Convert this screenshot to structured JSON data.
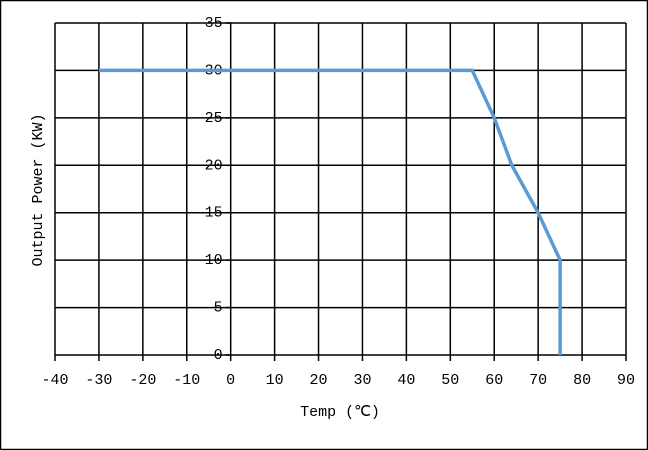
{
  "chart_data": {
    "type": "line",
    "x_label": "Temp (℃)",
    "y_label": "Output Power (KW)",
    "x": [
      -30,
      55,
      60,
      64,
      70,
      75,
      75
    ],
    "series": [
      {
        "color": "#5b9bd5",
        "values": [
          30,
          30,
          25,
          20,
          15,
          10,
          0
        ]
      }
    ],
    "xlim": [
      -40,
      90
    ],
    "xticks": [
      -40,
      -30,
      -20,
      -10,
      0,
      10,
      20,
      30,
      40,
      50,
      60,
      70,
      80,
      90
    ],
    "ylim": [
      0,
      35
    ],
    "yticks": [
      0,
      5,
      10,
      15,
      20,
      25,
      30,
      35
    ],
    "grid": true
  }
}
